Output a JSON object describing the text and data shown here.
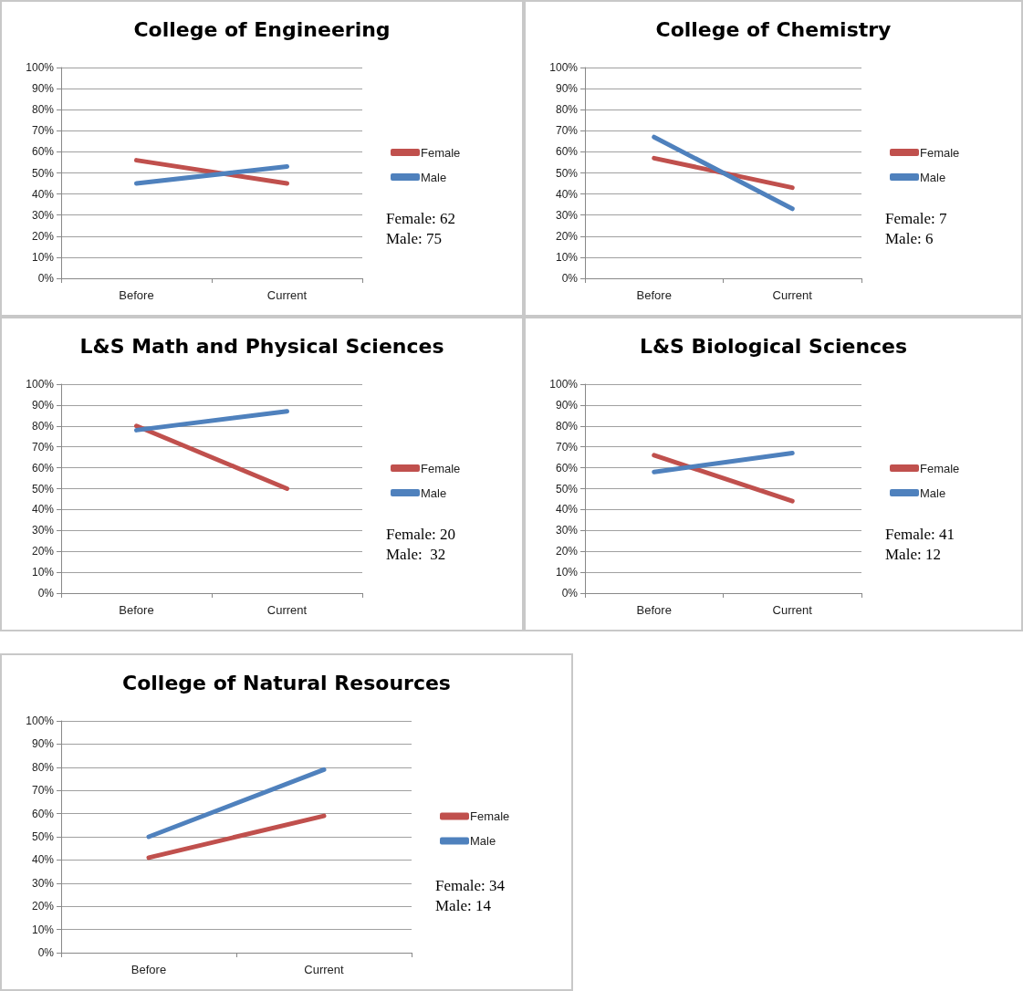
{
  "chart_data": [
    {
      "type": "line",
      "title": "College of Engineering",
      "categories": [
        "Before",
        "Current"
      ],
      "series": [
        {
          "name": "Female",
          "color": "#c0504d",
          "values": [
            56,
            45
          ]
        },
        {
          "name": "Male",
          "color": "#4f81bd",
          "values": [
            45,
            53
          ]
        }
      ],
      "ylim": [
        0,
        100
      ],
      "yticks": [
        {
          "value": 0,
          "label": "0%"
        },
        {
          "value": 10,
          "label": "10%"
        },
        {
          "value": 20,
          "label": "20%"
        },
        {
          "value": 30,
          "label": "30%"
        },
        {
          "value": 40,
          "label": "40%"
        },
        {
          "value": 50,
          "label": "50%"
        },
        {
          "value": 60,
          "label": "60%"
        },
        {
          "value": 70,
          "label": "70%"
        },
        {
          "value": 80,
          "label": "80%"
        },
        {
          "value": 90,
          "label": "90%"
        },
        {
          "value": 100,
          "label": "100%"
        }
      ],
      "grid": "y",
      "legend": "right",
      "marker": "none",
      "annotations": [
        "Female: 62",
        "Male: 75"
      ]
    },
    {
      "type": "line",
      "title": "College of Chemistry",
      "categories": [
        "Before",
        "Current"
      ],
      "series": [
        {
          "name": "Female",
          "color": "#c0504d",
          "values": [
            57,
            43
          ]
        },
        {
          "name": "Male",
          "color": "#4f81bd",
          "values": [
            67,
            33
          ]
        }
      ],
      "ylim": [
        0,
        100
      ],
      "yticks": [
        {
          "value": 0,
          "label": "0%"
        },
        {
          "value": 10,
          "label": "10%"
        },
        {
          "value": 20,
          "label": "20%"
        },
        {
          "value": 30,
          "label": "30%"
        },
        {
          "value": 40,
          "label": "40%"
        },
        {
          "value": 50,
          "label": "50%"
        },
        {
          "value": 60,
          "label": "60%"
        },
        {
          "value": 70,
          "label": "70%"
        },
        {
          "value": 80,
          "label": "80%"
        },
        {
          "value": 90,
          "label": "90%"
        },
        {
          "value": 100,
          "label": "100%"
        }
      ],
      "grid": "y",
      "legend": "right",
      "marker": "none",
      "annotations": [
        "Female: 7",
        "Male: 6"
      ]
    },
    {
      "type": "line",
      "title": "L&S Math and Physical Sciences",
      "categories": [
        "Before",
        "Current"
      ],
      "series": [
        {
          "name": "Female",
          "color": "#c0504d",
          "values": [
            80,
            50
          ]
        },
        {
          "name": "Male",
          "color": "#4f81bd",
          "values": [
            78,
            87
          ]
        }
      ],
      "ylim": [
        0,
        100
      ],
      "yticks": [
        {
          "value": 0,
          "label": "0%"
        },
        {
          "value": 10,
          "label": "10%"
        },
        {
          "value": 20,
          "label": "20%"
        },
        {
          "value": 30,
          "label": "30%"
        },
        {
          "value": 40,
          "label": "40%"
        },
        {
          "value": 50,
          "label": "50%"
        },
        {
          "value": 60,
          "label": "60%"
        },
        {
          "value": 70,
          "label": "70%"
        },
        {
          "value": 80,
          "label": "80%"
        },
        {
          "value": 90,
          "label": "90%"
        },
        {
          "value": 100,
          "label": "100%"
        }
      ],
      "grid": "y",
      "legend": "right",
      "marker": "none",
      "annotations": [
        "Female: 20",
        "Male:  32"
      ]
    },
    {
      "type": "line",
      "title": "L&S Biological Sciences",
      "categories": [
        "Before",
        "Current"
      ],
      "series": [
        {
          "name": "Female",
          "color": "#c0504d",
          "values": [
            66,
            44
          ]
        },
        {
          "name": "Male",
          "color": "#4f81bd",
          "values": [
            58,
            67
          ]
        }
      ],
      "ylim": [
        0,
        100
      ],
      "yticks": [
        {
          "value": 0,
          "label": "0%"
        },
        {
          "value": 10,
          "label": "10%"
        },
        {
          "value": 20,
          "label": "20%"
        },
        {
          "value": 30,
          "label": "30%"
        },
        {
          "value": 40,
          "label": "40%"
        },
        {
          "value": 50,
          "label": "50%"
        },
        {
          "value": 60,
          "label": "60%"
        },
        {
          "value": 70,
          "label": "70%"
        },
        {
          "value": 80,
          "label": "80%"
        },
        {
          "value": 90,
          "label": "90%"
        },
        {
          "value": 100,
          "label": "100%"
        }
      ],
      "grid": "y",
      "legend": "right",
      "marker": "none",
      "annotations": [
        "Female: 41",
        "Male: 12"
      ]
    },
    {
      "type": "line",
      "title": "College of Natural Resources",
      "categories": [
        "Before",
        "Current"
      ],
      "series": [
        {
          "name": "Female",
          "color": "#c0504d",
          "values": [
            41,
            59
          ]
        },
        {
          "name": "Male",
          "color": "#4f81bd",
          "values": [
            50,
            79
          ]
        }
      ],
      "ylim": [
        0,
        100
      ],
      "yticks": [
        {
          "value": 0,
          "label": "0%"
        },
        {
          "value": 10,
          "label": "10%"
        },
        {
          "value": 20,
          "label": "20%"
        },
        {
          "value": 30,
          "label": "30%"
        },
        {
          "value": 40,
          "label": "40%"
        },
        {
          "value": 50,
          "label": "50%"
        },
        {
          "value": 60,
          "label": "60%"
        },
        {
          "value": 70,
          "label": "70%"
        },
        {
          "value": 80,
          "label": "80%"
        },
        {
          "value": 90,
          "label": "90%"
        },
        {
          "value": 100,
          "label": "100%"
        }
      ],
      "grid": "y",
      "legend": "right",
      "marker": "none",
      "annotations": [
        "Female: 34",
        "Male: 14"
      ]
    }
  ]
}
